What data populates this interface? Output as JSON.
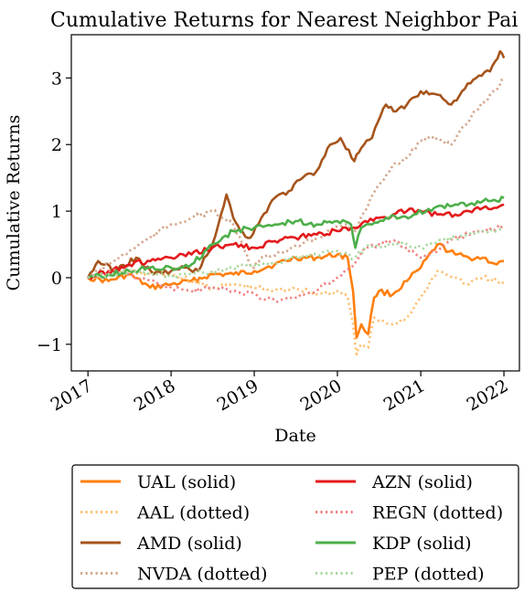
{
  "chart_data": {
    "type": "line",
    "title": "Cumulative Returns for Nearest Neighbor Pai",
    "xlabel": "Date",
    "ylabel": "Cumulative Returns",
    "xlim": [
      "2016-10-20",
      "2022-03-10"
    ],
    "ylim": [
      -1.4,
      3.65
    ],
    "x_ticks": [
      {
        "label": "2017",
        "date": "2017-01-01"
      },
      {
        "label": "2018",
        "date": "2018-01-01"
      },
      {
        "label": "2019",
        "date": "2019-01-01"
      },
      {
        "label": "2020",
        "date": "2020-01-01"
      },
      {
        "label": "2021",
        "date": "2021-01-01"
      },
      {
        "label": "2022",
        "date": "2022-01-01"
      }
    ],
    "y_ticks": [
      {
        "label": "−1",
        "value": -1
      },
      {
        "label": "0",
        "value": 0
      },
      {
        "label": "1",
        "value": 1
      },
      {
        "label": "2",
        "value": 2
      },
      {
        "label": "3",
        "value": 3
      }
    ],
    "grid": false,
    "legend_position": "below",
    "series": [
      {
        "name": "UAL (solid)",
        "color": "#ff7f0e",
        "style": "solid",
        "x": [
          "2017-01-01",
          "2017-04-01",
          "2017-07-01",
          "2017-10-01",
          "2018-01-01",
          "2018-04-01",
          "2018-07-01",
          "2018-10-01",
          "2019-01-01",
          "2019-04-01",
          "2019-07-01",
          "2019-10-01",
          "2020-01-01",
          "2020-02-15",
          "2020-03-10",
          "2020-03-25",
          "2020-04-15",
          "2020-05-15",
          "2020-06-10",
          "2020-07-01",
          "2020-09-01",
          "2020-11-01",
          "2021-01-01",
          "2021-03-15",
          "2021-06-01",
          "2021-08-01",
          "2021-10-01",
          "2021-12-01",
          "2022-01-01"
        ],
        "y": [
          0.0,
          -0.05,
          0.05,
          -0.15,
          -0.1,
          -0.05,
          0.05,
          0.05,
          0.1,
          0.2,
          0.3,
          0.3,
          0.35,
          0.3,
          -0.2,
          -0.9,
          -0.7,
          -0.85,
          -0.3,
          -0.2,
          -0.25,
          -0.05,
          0.15,
          0.5,
          0.35,
          0.3,
          0.3,
          0.2,
          0.25
        ]
      },
      {
        "name": "AAL (dotted)",
        "color": "#fdbf6f",
        "style": "dotted",
        "x": [
          "2017-01-01",
          "2017-04-01",
          "2017-07-01",
          "2017-10-01",
          "2018-01-01",
          "2018-04-01",
          "2018-07-01",
          "2018-10-01",
          "2019-01-01",
          "2019-04-01",
          "2019-07-01",
          "2019-10-01",
          "2020-01-01",
          "2020-02-15",
          "2020-03-10",
          "2020-03-25",
          "2020-04-15",
          "2020-05-15",
          "2020-06-10",
          "2020-07-01",
          "2020-09-01",
          "2020-11-01",
          "2021-01-01",
          "2021-03-15",
          "2021-06-01",
          "2021-08-01",
          "2021-10-01",
          "2021-12-01",
          "2022-01-01"
        ],
        "y": [
          0.0,
          0.05,
          0.1,
          0.05,
          0.05,
          -0.05,
          -0.15,
          -0.1,
          -0.15,
          -0.2,
          -0.15,
          -0.25,
          -0.2,
          -0.3,
          -0.7,
          -1.15,
          -1.0,
          -1.05,
          -0.6,
          -0.65,
          -0.7,
          -0.6,
          -0.3,
          0.1,
          0.0,
          -0.1,
          0.0,
          -0.05,
          -0.1
        ]
      },
      {
        "name": "AMD (solid)",
        "color": "#a6541c",
        "style": "solid",
        "x": [
          "2017-01-01",
          "2017-02-15",
          "2017-05-01",
          "2017-08-01",
          "2017-10-15",
          "2018-01-01",
          "2018-03-01",
          "2018-05-01",
          "2018-07-01",
          "2018-09-01",
          "2018-10-01",
          "2018-11-01",
          "2018-12-15",
          "2019-02-01",
          "2019-04-01",
          "2019-06-01",
          "2019-08-01",
          "2019-10-01",
          "2019-12-01",
          "2020-01-15",
          "2020-03-15",
          "2020-04-15",
          "2020-06-01",
          "2020-08-01",
          "2020-09-15",
          "2020-11-01",
          "2021-01-01",
          "2021-03-15",
          "2021-05-15",
          "2021-07-01",
          "2021-09-01",
          "2021-11-01",
          "2021-12-15",
          "2022-01-01"
        ],
        "y": [
          0.0,
          0.25,
          0.1,
          0.3,
          0.05,
          0.1,
          0.15,
          0.1,
          0.5,
          1.25,
          0.9,
          0.7,
          0.6,
          0.9,
          1.2,
          1.3,
          1.5,
          1.6,
          2.0,
          2.1,
          1.75,
          1.95,
          2.1,
          2.6,
          2.5,
          2.6,
          2.8,
          2.75,
          2.6,
          2.8,
          3.0,
          3.1,
          3.4,
          3.3
        ]
      },
      {
        "name": "NVDA (dotted)",
        "color": "#d4a589",
        "style": "dotted",
        "x": [
          "2017-01-01",
          "2017-04-01",
          "2017-07-01",
          "2017-10-01",
          "2018-01-01",
          "2018-04-01",
          "2018-07-01",
          "2018-10-01",
          "2018-12-20",
          "2019-03-01",
          "2019-06-01",
          "2019-09-01",
          "2019-12-01",
          "2020-02-01",
          "2020-03-20",
          "2020-05-01",
          "2020-07-01",
          "2020-09-01",
          "2020-11-01",
          "2021-01-01",
          "2021-03-15",
          "2021-05-15",
          "2021-07-01",
          "2021-09-01",
          "2021-11-15",
          "2021-12-15",
          "2022-01-01"
        ],
        "y": [
          0.0,
          0.2,
          0.4,
          0.6,
          0.8,
          0.9,
          1.0,
          0.8,
          0.15,
          0.35,
          0.4,
          0.55,
          0.7,
          0.8,
          0.7,
          1.0,
          1.4,
          1.7,
          1.8,
          2.05,
          2.1,
          2.0,
          2.25,
          2.5,
          2.8,
          2.9,
          3.0
        ]
      },
      {
        "name": "AZN (solid)",
        "color": "#e31a1c",
        "style": "solid",
        "x": [
          "2017-01-01",
          "2017-04-01",
          "2017-07-01",
          "2017-10-01",
          "2018-01-01",
          "2018-04-01",
          "2018-07-01",
          "2018-10-01",
          "2019-01-01",
          "2019-04-01",
          "2019-07-01",
          "2019-10-01",
          "2020-01-01",
          "2020-03-15",
          "2020-05-01",
          "2020-07-01",
          "2020-09-01",
          "2020-11-01",
          "2021-01-01",
          "2021-03-15",
          "2021-06-01",
          "2021-08-01",
          "2021-10-01",
          "2021-12-01",
          "2022-01-01"
        ],
        "y": [
          0.0,
          0.1,
          0.2,
          0.25,
          0.3,
          0.35,
          0.45,
          0.5,
          0.45,
          0.55,
          0.6,
          0.65,
          0.7,
          0.75,
          0.85,
          0.9,
          0.95,
          1.0,
          1.0,
          0.95,
          0.95,
          1.0,
          1.05,
          1.05,
          1.1
        ]
      },
      {
        "name": "REGN (dotted)",
        "color": "#f08080",
        "style": "dotted",
        "x": [
          "2017-01-01",
          "2017-04-01",
          "2017-07-01",
          "2017-10-01",
          "2018-01-01",
          "2018-04-01",
          "2018-07-01",
          "2018-10-01",
          "2019-01-01",
          "2019-04-01",
          "2019-07-01",
          "2019-10-01",
          "2020-01-01",
          "2020-03-15",
          "2020-05-01",
          "2020-07-01",
          "2020-09-01",
          "2020-11-01",
          "2021-01-01",
          "2021-03-15",
          "2021-06-01",
          "2021-08-01",
          "2021-10-01",
          "2021-12-01",
          "2022-01-01"
        ],
        "y": [
          0.0,
          0.1,
          0.05,
          -0.05,
          -0.15,
          -0.2,
          -0.15,
          -0.2,
          -0.25,
          -0.35,
          -0.3,
          -0.2,
          0.0,
          0.2,
          0.45,
          0.5,
          0.55,
          0.45,
          0.3,
          0.4,
          0.6,
          0.65,
          0.7,
          0.75,
          0.8
        ]
      },
      {
        "name": "KDP (solid)",
        "color": "#4daf4a",
        "style": "solid",
        "x": [
          "2017-01-01",
          "2017-04-01",
          "2017-07-01",
          "2017-10-01",
          "2018-01-01",
          "2018-04-01",
          "2018-07-01",
          "2018-10-01",
          "2019-01-01",
          "2019-04-01",
          "2019-07-01",
          "2019-10-01",
          "2020-01-01",
          "2020-03-01",
          "2020-03-20",
          "2020-04-15",
          "2020-06-01",
          "2020-08-01",
          "2020-10-01",
          "2020-12-01",
          "2021-03-01",
          "2021-06-01",
          "2021-08-01",
          "2021-10-01",
          "2021-12-01",
          "2022-01-01"
        ],
        "y": [
          0.0,
          0.05,
          0.1,
          0.15,
          0.15,
          0.2,
          0.5,
          0.7,
          0.75,
          0.8,
          0.85,
          0.8,
          0.85,
          0.8,
          0.45,
          0.75,
          0.8,
          0.9,
          0.9,
          0.95,
          1.05,
          1.1,
          1.1,
          1.15,
          1.15,
          1.2
        ]
      },
      {
        "name": "PEP (dotted)",
        "color": "#a9d8a0",
        "style": "dotted",
        "x": [
          "2017-01-01",
          "2017-04-01",
          "2017-07-01",
          "2017-10-01",
          "2018-01-01",
          "2018-04-01",
          "2018-07-01",
          "2018-10-01",
          "2019-01-01",
          "2019-04-01",
          "2019-07-01",
          "2019-10-01",
          "2020-01-01",
          "2020-03-15",
          "2020-05-01",
          "2020-07-01",
          "2020-09-01",
          "2020-11-01",
          "2021-01-01",
          "2021-03-15",
          "2021-06-01",
          "2021-08-01",
          "2021-10-01",
          "2021-12-01",
          "2022-01-01"
        ],
        "y": [
          0.0,
          0.05,
          0.1,
          0.05,
          0.0,
          0.05,
          0.1,
          0.15,
          0.2,
          0.2,
          0.3,
          0.35,
          0.4,
          0.3,
          0.45,
          0.45,
          0.5,
          0.5,
          0.45,
          0.55,
          0.6,
          0.65,
          0.7,
          0.7,
          0.75
        ]
      }
    ]
  }
}
